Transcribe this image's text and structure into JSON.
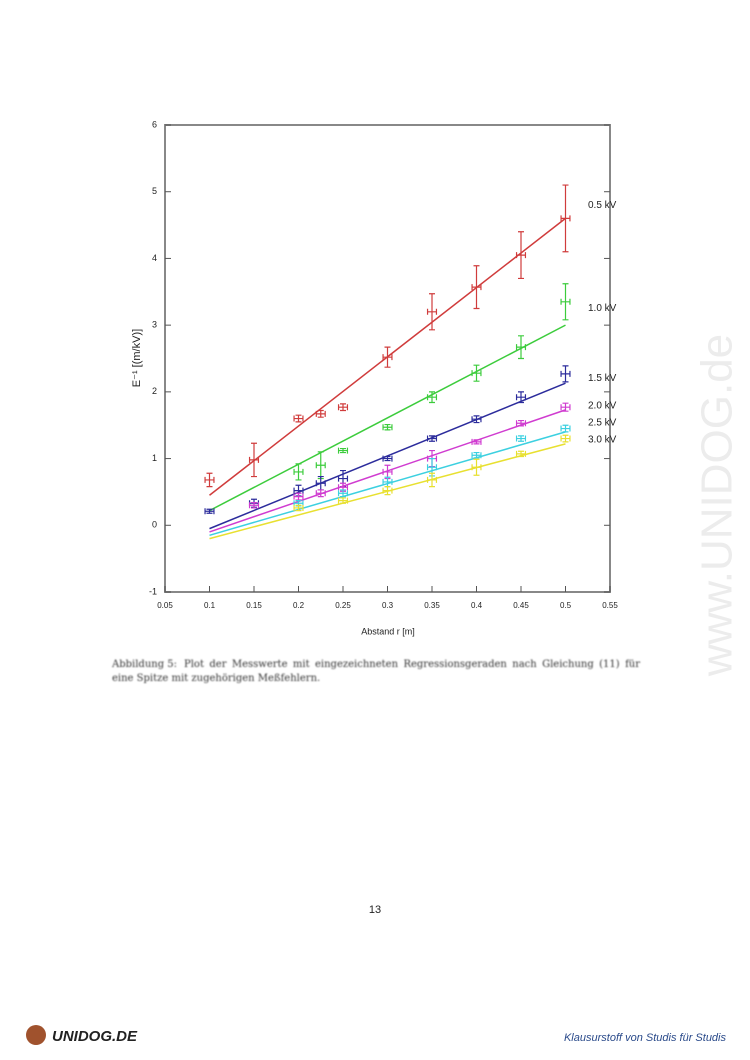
{
  "chart_data": {
    "type": "errorbar-line",
    "xlabel": "Abstand r [m]",
    "ylabel": "E⁻¹ [(m/kV)]",
    "x": [
      0.1,
      0.15,
      0.2,
      0.225,
      0.25,
      0.3,
      0.35,
      0.4,
      0.45,
      0.5
    ],
    "xerr": 0.005,
    "fit_x": [
      0.1,
      0.5
    ],
    "xlim": [
      0.05,
      0.55
    ],
    "xticks": [
      0.05,
      0.1,
      0.15,
      0.2,
      0.25,
      0.3,
      0.35,
      0.4,
      0.45,
      0.5,
      0.55
    ],
    "ylim": [
      -1,
      6
    ],
    "yticks": [
      -1,
      0,
      1,
      2,
      3,
      4,
      5,
      6
    ],
    "series": [
      {
        "name": "0.5 kV",
        "color": "#d03c3c",
        "values": [
          0.68,
          0.98,
          1.6,
          1.67,
          1.77,
          2.52,
          3.2,
          3.57,
          4.05,
          4.6
        ],
        "errors": [
          0.1,
          0.25,
          0.05,
          0.05,
          0.05,
          0.15,
          0.27,
          0.32,
          0.35,
          0.5
        ],
        "fit": [
          0.45,
          4.6
        ]
      },
      {
        "name": "1.0 kV",
        "color": "#3ccc3c",
        "values": [
          null,
          null,
          0.8,
          0.9,
          1.12,
          1.47,
          1.92,
          2.28,
          2.67,
          3.35
        ],
        "errors": [
          null,
          null,
          0.12,
          0.2,
          0.03,
          0.04,
          0.08,
          0.12,
          0.17,
          0.27
        ],
        "fit": [
          0.22,
          3.0
        ]
      },
      {
        "name": "1.5 kV",
        "color": "#2c2c9c",
        "values": [
          0.21,
          0.33,
          0.52,
          0.63,
          0.7,
          1.0,
          1.3,
          1.59,
          1.92,
          2.27
        ],
        "errors": [
          0.03,
          0.06,
          0.08,
          0.1,
          0.12,
          0.03,
          0.04,
          0.05,
          0.08,
          0.12
        ],
        "fit": [
          -0.05,
          2.13
        ]
      },
      {
        "name": "2.0 kV",
        "color": "#d03cd0",
        "values": [
          null,
          0.3,
          0.43,
          0.48,
          0.57,
          0.8,
          1.0,
          1.25,
          1.53,
          1.77
        ],
        "errors": [
          null,
          0.04,
          0.05,
          0.05,
          0.06,
          0.1,
          0.12,
          0.03,
          0.04,
          0.06
        ],
        "fit": [
          -0.1,
          1.73
        ]
      },
      {
        "name": "2.5 kV",
        "color": "#3cd0e0",
        "values": [
          null,
          null,
          0.33,
          null,
          0.48,
          0.65,
          0.87,
          1.05,
          1.3,
          1.45
        ],
        "errors": [
          null,
          null,
          0.04,
          null,
          0.05,
          0.07,
          0.13,
          0.04,
          0.04,
          0.05
        ],
        "fit": [
          -0.15,
          1.4
        ]
      },
      {
        "name": "3.0 kV",
        "color": "#e8e030",
        "values": [
          null,
          null,
          0.26,
          null,
          0.37,
          0.52,
          0.68,
          0.87,
          1.07,
          1.3
        ],
        "errors": [
          null,
          null,
          0.04,
          null,
          0.04,
          0.06,
          0.1,
          0.12,
          0.04,
          0.05
        ],
        "fit": [
          -0.2,
          1.22
        ]
      }
    ]
  },
  "caption": {
    "label": "Abbildung 5:",
    "text": "Plot der Messwerte mit eingezeichneten Regressionsgeraden nach Gleichung (11) für eine Spitze mit zugehörigen Meßfehlern."
  },
  "page_number": "13",
  "footer": {
    "logo": "UNIDOG.DE",
    "slogan": "Klausurstoff von Studis für Studis"
  },
  "watermark": "www.UNIDOG.de"
}
